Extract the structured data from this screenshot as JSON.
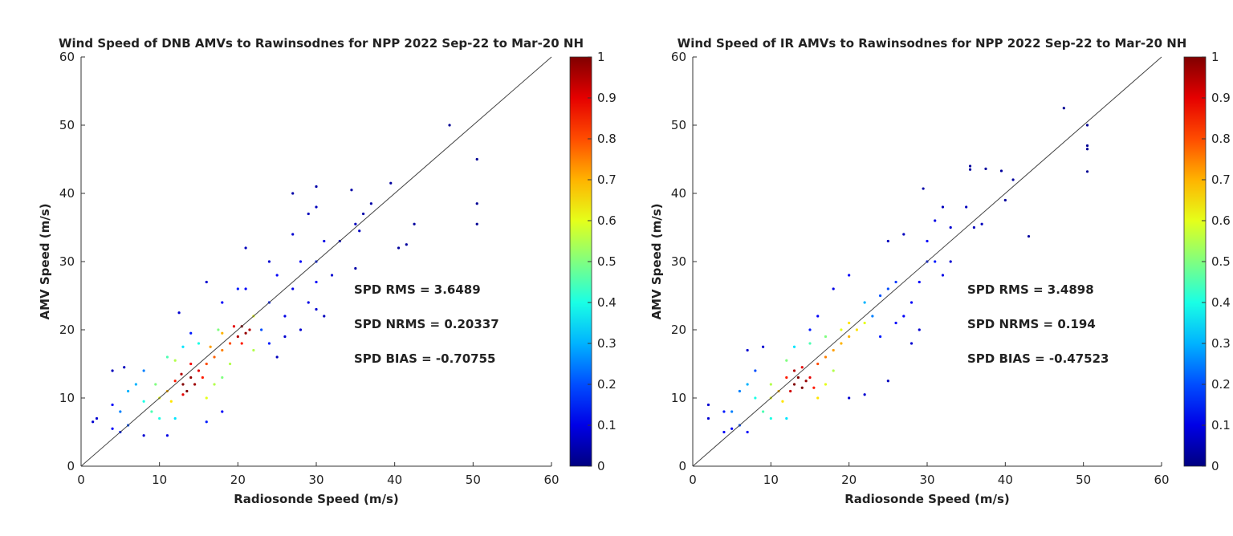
{
  "chart_data": [
    {
      "type": "scatter",
      "title": "Wind Speed of DNB AMVs to Rawinsodnes for NPP 2022 Sep-22 to Mar-20 NH",
      "xlabel": "Radiosonde Speed (m/s)",
      "ylabel": "AMV Speed (m/s)",
      "xlim": [
        0,
        60
      ],
      "ylim": [
        0,
        60
      ],
      "xticks": [
        "0",
        "10",
        "20",
        "30",
        "40",
        "50",
        "60"
      ],
      "yticks": [
        "0",
        "10",
        "20",
        "30",
        "40",
        "50",
        "60"
      ],
      "colorbar": {
        "range": [
          0,
          1
        ],
        "ticks": [
          "0",
          "0.1",
          "0.2",
          "0.3",
          "0.4",
          "0.5",
          "0.6",
          "0.7",
          "0.8",
          "0.9",
          "1"
        ]
      },
      "reference_line": "y = x",
      "stats": [
        "SPD RMS = 3.6489",
        "SPD NRMS = 0.20337",
        "SPD BIAS  =  -0.70755"
      ],
      "points_xyd": [
        [
          13,
          12,
          1
        ],
        [
          13.5,
          11,
          1
        ],
        [
          14,
          13,
          0.98
        ],
        [
          12.8,
          13.5,
          0.95
        ],
        [
          14.5,
          12,
          0.97
        ],
        [
          15,
          14,
          0.9
        ],
        [
          13,
          10.5,
          0.9
        ],
        [
          14,
          15,
          0.88
        ],
        [
          15.5,
          13,
          0.85
        ],
        [
          12,
          12.5,
          0.85
        ],
        [
          16,
          15,
          0.8
        ],
        [
          17,
          16,
          0.78
        ],
        [
          18,
          17,
          0.75
        ],
        [
          16.5,
          17.5,
          0.72
        ],
        [
          19,
          18,
          0.8
        ],
        [
          20,
          19,
          0.95
        ],
        [
          20.5,
          20.5,
          1
        ],
        [
          21,
          19.5,
          0.98
        ],
        [
          21.5,
          20,
          0.95
        ],
        [
          19.5,
          20.5,
          0.9
        ],
        [
          20.5,
          18,
          0.85
        ],
        [
          18,
          19.5,
          0.7
        ],
        [
          11,
          11,
          0.7
        ],
        [
          11.5,
          9.5,
          0.65
        ],
        [
          10,
          10,
          0.6
        ],
        [
          9.5,
          12,
          0.5
        ],
        [
          12,
          15.5,
          0.55
        ],
        [
          11,
          16,
          0.45
        ],
        [
          16,
          10,
          0.6
        ],
        [
          17,
          12,
          0.55
        ],
        [
          18,
          13,
          0.5
        ],
        [
          19,
          15,
          0.55
        ],
        [
          22,
          17,
          0.55
        ],
        [
          22,
          22,
          0.6
        ],
        [
          17.5,
          20,
          0.5
        ],
        [
          15,
          18,
          0.4
        ],
        [
          13,
          17.5,
          0.35
        ],
        [
          9,
          8,
          0.45
        ],
        [
          8,
          9.5,
          0.4
        ],
        [
          10,
          7,
          0.4
        ],
        [
          12,
          7,
          0.35
        ],
        [
          7,
          12,
          0.3
        ],
        [
          6,
          11,
          0.3
        ],
        [
          8,
          14,
          0.25
        ],
        [
          5,
          8,
          0.25
        ],
        [
          6,
          6,
          0.2
        ],
        [
          4,
          9,
          0.12
        ],
        [
          4,
          5.5,
          0.12
        ],
        [
          2,
          7,
          0.08
        ],
        [
          1.5,
          6.5,
          0.08
        ],
        [
          5,
          5,
          0.15
        ],
        [
          8,
          4.5,
          0.08
        ],
        [
          11,
          4.5,
          0.1
        ],
        [
          16,
          6.5,
          0.15
        ],
        [
          18,
          8,
          0.12
        ],
        [
          14,
          19.5,
          0.15
        ],
        [
          12.5,
          22.5,
          0.08
        ],
        [
          16,
          27,
          0.08
        ],
        [
          18,
          24,
          0.12
        ],
        [
          21,
          26,
          0.12
        ],
        [
          20,
          26,
          0.15
        ],
        [
          23,
          20,
          0.2
        ],
        [
          24,
          18,
          0.15
        ],
        [
          24,
          24,
          0.15
        ],
        [
          25,
          28,
          0.12
        ],
        [
          26,
          22,
          0.1
        ],
        [
          27,
          26,
          0.1
        ],
        [
          28,
          30,
          0.12
        ],
        [
          29,
          24,
          0.1
        ],
        [
          30,
          30,
          0.15
        ],
        [
          30,
          27,
          0.12
        ],
        [
          31,
          33,
          0.1
        ],
        [
          32,
          28,
          0.08
        ],
        [
          33,
          33,
          0.08
        ],
        [
          30,
          23,
          0.08
        ],
        [
          31,
          22,
          0.06
        ],
        [
          28,
          20,
          0.08
        ],
        [
          26,
          19,
          0.08
        ],
        [
          25,
          16,
          0.06
        ],
        [
          27,
          34,
          0.08
        ],
        [
          29,
          37,
          0.06
        ],
        [
          30,
          38,
          0.06
        ],
        [
          27,
          40,
          0.04
        ],
        [
          30,
          41,
          0.04
        ],
        [
          34.5,
          40.5,
          0.04
        ],
        [
          35,
          35.5,
          0.06
        ],
        [
          35.5,
          34.5,
          0.06
        ],
        [
          36,
          37,
          0.04
        ],
        [
          37,
          38.5,
          0.04
        ],
        [
          39.5,
          41.5,
          0.03
        ],
        [
          40.5,
          32,
          0.03
        ],
        [
          41.5,
          32.5,
          0.03
        ],
        [
          42.5,
          35.5,
          0.03
        ],
        [
          35,
          29,
          0.04
        ],
        [
          47,
          50,
          0.02
        ],
        [
          50.5,
          45,
          0.02
        ],
        [
          50.5,
          38.5,
          0.02
        ],
        [
          50.5,
          35.5,
          0.02
        ],
        [
          21,
          32,
          0.06
        ],
        [
          24,
          30,
          0.08
        ],
        [
          4,
          14,
          0.06
        ],
        [
          5.5,
          14.5,
          0.06
        ]
      ]
    },
    {
      "type": "scatter",
      "title": "Wind Speed of IR AMVs to Rawinsodnes for NPP 2022 Sep-22 to Mar-20 NH",
      "xlabel": "Radiosonde Speed (m/s)",
      "ylabel": "AMV Speed (m/s)",
      "xlim": [
        0,
        60
      ],
      "ylim": [
        0,
        60
      ],
      "xticks": [
        "0",
        "10",
        "20",
        "30",
        "40",
        "50",
        "60"
      ],
      "yticks": [
        "0",
        "10",
        "20",
        "30",
        "40",
        "50",
        "60"
      ],
      "colorbar": {
        "range": [
          0,
          1
        ],
        "ticks": [
          "0",
          "0.1",
          "0.2",
          "0.3",
          "0.4",
          "0.5",
          "0.6",
          "0.7",
          "0.8",
          "0.9",
          "1"
        ]
      },
      "reference_line": "y = x",
      "stats": [
        "SPD RMS = 3.4898",
        "SPD NRMS = 0.194",
        "SPD BIAS  =  -0.47523"
      ],
      "points_xyd": [
        [
          13,
          12,
          1
        ],
        [
          13.5,
          13,
          1
        ],
        [
          14,
          11.5,
          1
        ],
        [
          14.5,
          12.5,
          0.98
        ],
        [
          13,
          14,
          0.95
        ],
        [
          12.5,
          11,
          0.92
        ],
        [
          15,
          13,
          0.9
        ],
        [
          14,
          14.5,
          0.9
        ],
        [
          15.5,
          11.5,
          0.85
        ],
        [
          12,
          13,
          0.85
        ],
        [
          16,
          15,
          0.8
        ],
        [
          17,
          16,
          0.75
        ],
        [
          18,
          17,
          0.72
        ],
        [
          19,
          18,
          0.7
        ],
        [
          20,
          19,
          0.7
        ],
        [
          21,
          20,
          0.65
        ],
        [
          20,
          21,
          0.65
        ],
        [
          19,
          20,
          0.6
        ],
        [
          22,
          21,
          0.6
        ],
        [
          11,
          11,
          0.7
        ],
        [
          11.5,
          9.5,
          0.65
        ],
        [
          10,
          10,
          0.6
        ],
        [
          10,
          12,
          0.55
        ],
        [
          12,
          15.5,
          0.5
        ],
        [
          16,
          10,
          0.65
        ],
        [
          17,
          12,
          0.6
        ],
        [
          18,
          14,
          0.55
        ],
        [
          17,
          19,
          0.5
        ],
        [
          15,
          18,
          0.45
        ],
        [
          13,
          17.5,
          0.35
        ],
        [
          9,
          8,
          0.45
        ],
        [
          8,
          10,
          0.4
        ],
        [
          10,
          7,
          0.4
        ],
        [
          12,
          7,
          0.35
        ],
        [
          7,
          12,
          0.3
        ],
        [
          6,
          11,
          0.25
        ],
        [
          8,
          14,
          0.2
        ],
        [
          5,
          8,
          0.25
        ],
        [
          6,
          6,
          0.2
        ],
        [
          4,
          8,
          0.15
        ],
        [
          4,
          5,
          0.12
        ],
        [
          2,
          7,
          0.08
        ],
        [
          2,
          9,
          0.08
        ],
        [
          5,
          5.5,
          0.12
        ],
        [
          7,
          5,
          0.12
        ],
        [
          9,
          17.5,
          0.08
        ],
        [
          7,
          17,
          0.08
        ],
        [
          15,
          20,
          0.15
        ],
        [
          16,
          22,
          0.12
        ],
        [
          18,
          26,
          0.1
        ],
        [
          20,
          28,
          0.12
        ],
        [
          22,
          24,
          0.3
        ],
        [
          23,
          22,
          0.25
        ],
        [
          24,
          25,
          0.2
        ],
        [
          25,
          26,
          0.2
        ],
        [
          26,
          27,
          0.18
        ],
        [
          24,
          19,
          0.15
        ],
        [
          26,
          21,
          0.12
        ],
        [
          27,
          22,
          0.12
        ],
        [
          28,
          24,
          0.12
        ],
        [
          29,
          27,
          0.12
        ],
        [
          30,
          30,
          0.15
        ],
        [
          31,
          30,
          0.15
        ],
        [
          30,
          33,
          0.12
        ],
        [
          31,
          36,
          0.1
        ],
        [
          32,
          28,
          0.1
        ],
        [
          33,
          30,
          0.08
        ],
        [
          28,
          18,
          0.08
        ],
        [
          29,
          20,
          0.08
        ],
        [
          25,
          12.5,
          0.06
        ],
        [
          22,
          10.5,
          0.08
        ],
        [
          20,
          10,
          0.08
        ],
        [
          33,
          35,
          0.08
        ],
        [
          35,
          38,
          0.06
        ],
        [
          36,
          35,
          0.06
        ],
        [
          37,
          35.5,
          0.06
        ],
        [
          32,
          38,
          0.06
        ],
        [
          29.5,
          40.7,
          0.04
        ],
        [
          35.5,
          44,
          0.03
        ],
        [
          35.5,
          43.5,
          0.03
        ],
        [
          37.5,
          43.6,
          0.03
        ],
        [
          39.5,
          43.3,
          0.03
        ],
        [
          41,
          42,
          0.03
        ],
        [
          40,
          39,
          0.03
        ],
        [
          43,
          33.7,
          0.03
        ],
        [
          47.5,
          52.5,
          0.02
        ],
        [
          50.5,
          50,
          0.02
        ],
        [
          50.5,
          47,
          0.02
        ],
        [
          50.5,
          46.5,
          0.02
        ],
        [
          50.5,
          43.2,
          0.02
        ],
        [
          25,
          33,
          0.06
        ],
        [
          27,
          34,
          0.06
        ]
      ]
    }
  ]
}
